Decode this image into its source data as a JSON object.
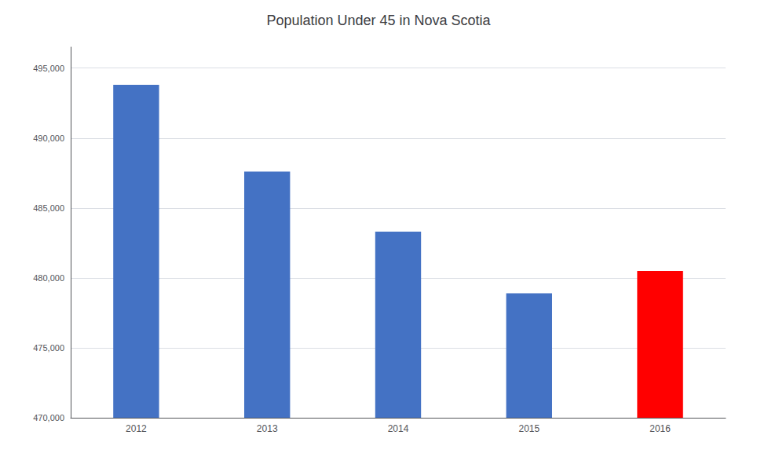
{
  "chart_data": {
    "type": "bar",
    "title": "Population Under 45 in Nova Scotia",
    "categories": [
      "2012",
      "2013",
      "2014",
      "2015",
      "2016"
    ],
    "values": [
      493800,
      487600,
      483300,
      478900,
      480500
    ],
    "colors": [
      "#4472C4",
      "#4472C4",
      "#4472C4",
      "#4472C4",
      "#FF0000"
    ],
    "ylim": [
      470000,
      496500
    ],
    "yticks": [
      {
        "value": 470000,
        "label": "470,000"
      },
      {
        "value": 475000,
        "label": "475,000"
      },
      {
        "value": 480000,
        "label": "480,000"
      },
      {
        "value": 485000,
        "label": "485,000"
      },
      {
        "value": 490000,
        "label": "490,000"
      },
      {
        "value": 495000,
        "label": "495,000"
      }
    ],
    "grid": true
  }
}
